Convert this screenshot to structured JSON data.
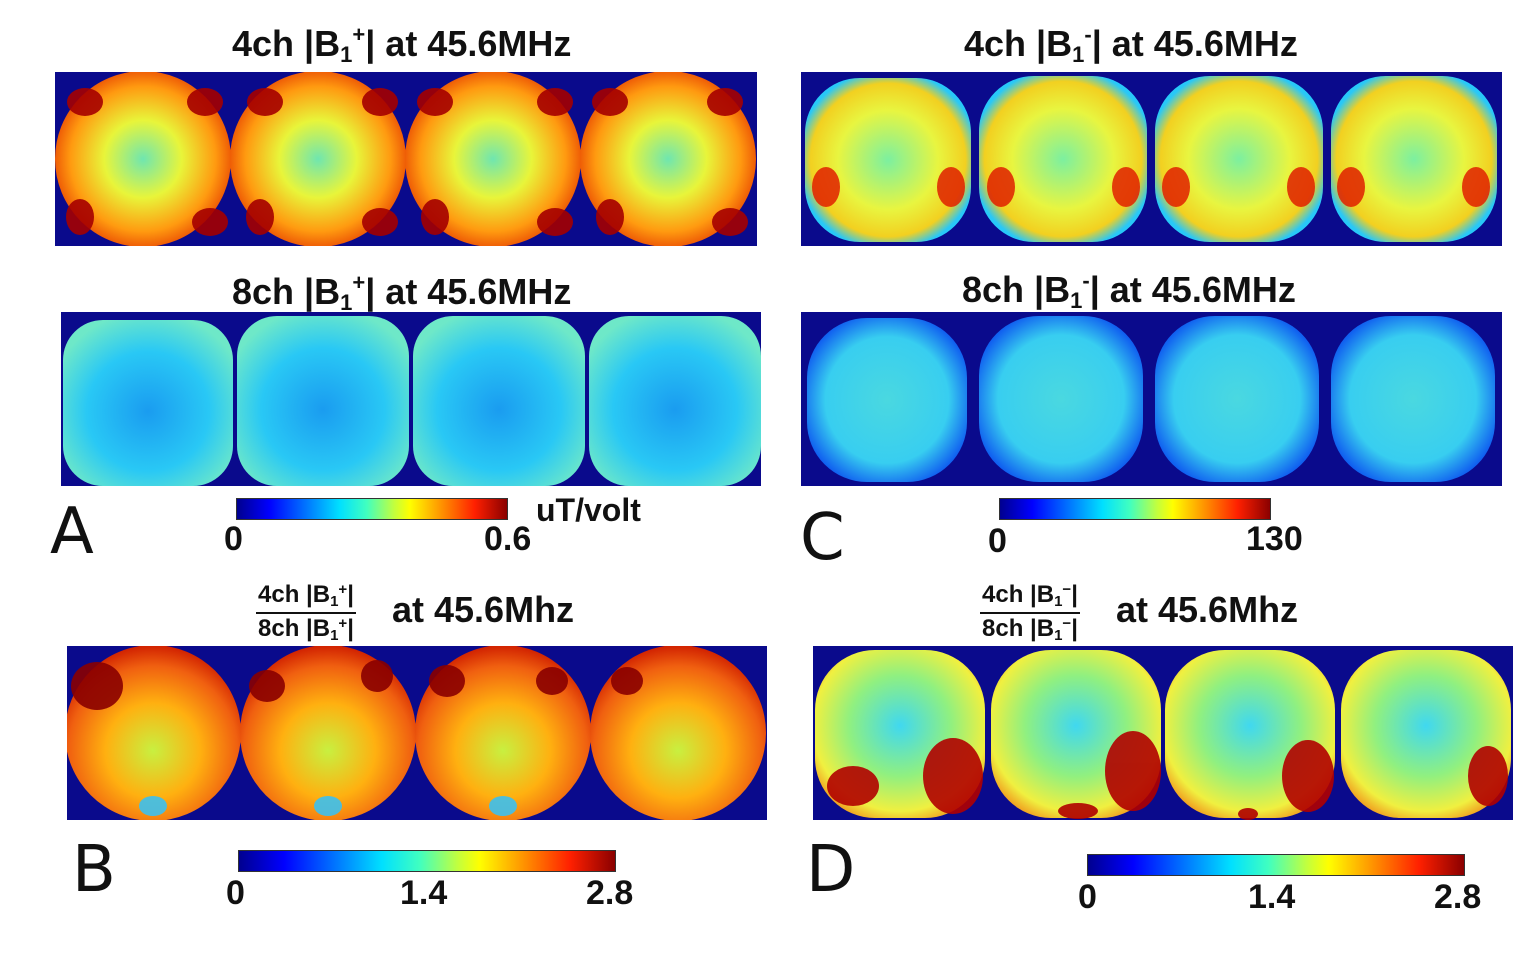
{
  "panels": {
    "a": {
      "letter": "A",
      "top_title": {
        "prefix": "4ch |B",
        "sub": "1",
        "sup": "+",
        "suffix": "| at 45.6MHz"
      },
      "bottom_title": {
        "prefix": "8ch |B",
        "sub": "1",
        "sup": "+",
        "suffix": "| at 45.6MHz"
      },
      "colorbar": {
        "min": "0",
        "max": "0.6",
        "unit": "uT/volt"
      }
    },
    "b": {
      "letter": "B",
      "fraction": {
        "num_prefix": "4ch |B",
        "den_prefix": "8ch |B",
        "sub": "1",
        "sup": "+",
        "end": "|"
      },
      "suffix": "at 45.6Mhz",
      "colorbar": {
        "min": "0",
        "mid": "1.4",
        "max": "2.8"
      }
    },
    "c": {
      "letter": "C",
      "top_title": {
        "prefix": "4ch |B",
        "sub": "1",
        "sup": "-",
        "suffix": "| at 45.6MHz"
      },
      "bottom_title": {
        "prefix": "8ch |B",
        "sub": "1",
        "sup": "-",
        "suffix": "| at 45.6MHz"
      },
      "colorbar": {
        "min": "0",
        "max": "130"
      }
    },
    "d": {
      "letter": "D",
      "fraction": {
        "num_prefix": "4ch |B",
        "den_prefix": "8ch |B",
        "sub": "1",
        "sup": "−",
        "end": "|"
      },
      "suffix": "at 45.6Mhz",
      "colorbar": {
        "min": "0",
        "mid": "1.4",
        "max": "2.8"
      }
    }
  },
  "colors": {
    "background_navy": "#0a0a8c",
    "jet_low": "#00008f",
    "jet_high": "#8a0000"
  }
}
